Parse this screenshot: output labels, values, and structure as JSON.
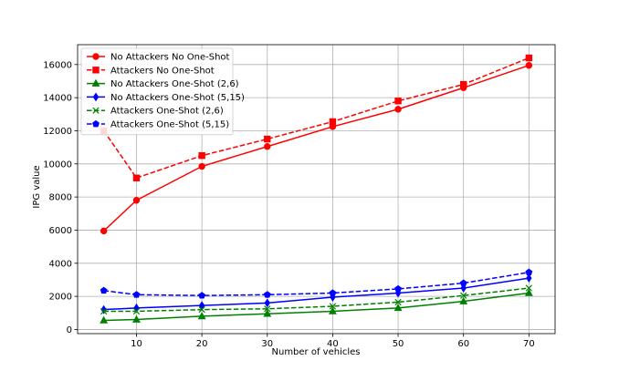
{
  "chart_data": {
    "type": "line",
    "title": "",
    "xlabel": "Number of vehicles",
    "ylabel": "IPG value",
    "x": [
      5,
      10,
      20,
      30,
      40,
      50,
      60,
      70
    ],
    "xticks": [
      10,
      20,
      30,
      40,
      50,
      60,
      70
    ],
    "yticks": [
      0,
      2000,
      4000,
      6000,
      8000,
      10000,
      12000,
      14000,
      16000
    ],
    "xlim": [
      1,
      74
    ],
    "ylim": [
      -250,
      17200
    ],
    "grid": true,
    "legend_position": "top-left",
    "series": [
      {
        "name": "No Attackers No One-Shot",
        "color": "#ff0000",
        "dash": "solid",
        "marker": "circle",
        "values": [
          5950,
          7800,
          9850,
          11050,
          12250,
          13300,
          14600,
          15950
        ]
      },
      {
        "name": "Attackers No One-Shot",
        "color": "#ff0000",
        "dash": "dashed",
        "marker": "square",
        "values": [
          12000,
          9150,
          10500,
          11500,
          12550,
          13800,
          14800,
          16400
        ]
      },
      {
        "name": "No Attackers One-Shot (2,6)",
        "color": "#008000",
        "dash": "solid",
        "marker": "triangle",
        "values": [
          550,
          600,
          800,
          950,
          1100,
          1300,
          1700,
          2200
        ]
      },
      {
        "name": "No Attackers One-Shot (5,15)",
        "color": "#0000ff",
        "dash": "solid",
        "marker": "diamond",
        "values": [
          1200,
          1300,
          1450,
          1600,
          1950,
          2200,
          2500,
          3100
        ]
      },
      {
        "name": "Attackers One-Shot (2,6)",
        "color": "#008000",
        "dash": "dashed",
        "marker": "x",
        "values": [
          1100,
          1100,
          1200,
          1250,
          1400,
          1650,
          2050,
          2500
        ]
      },
      {
        "name": "Attackers One-Shot (5,15)",
        "color": "#0000ff",
        "dash": "dashed",
        "marker": "pentagon",
        "values": [
          2350,
          2100,
          2050,
          2100,
          2200,
          2450,
          2800,
          3450
        ]
      }
    ]
  }
}
